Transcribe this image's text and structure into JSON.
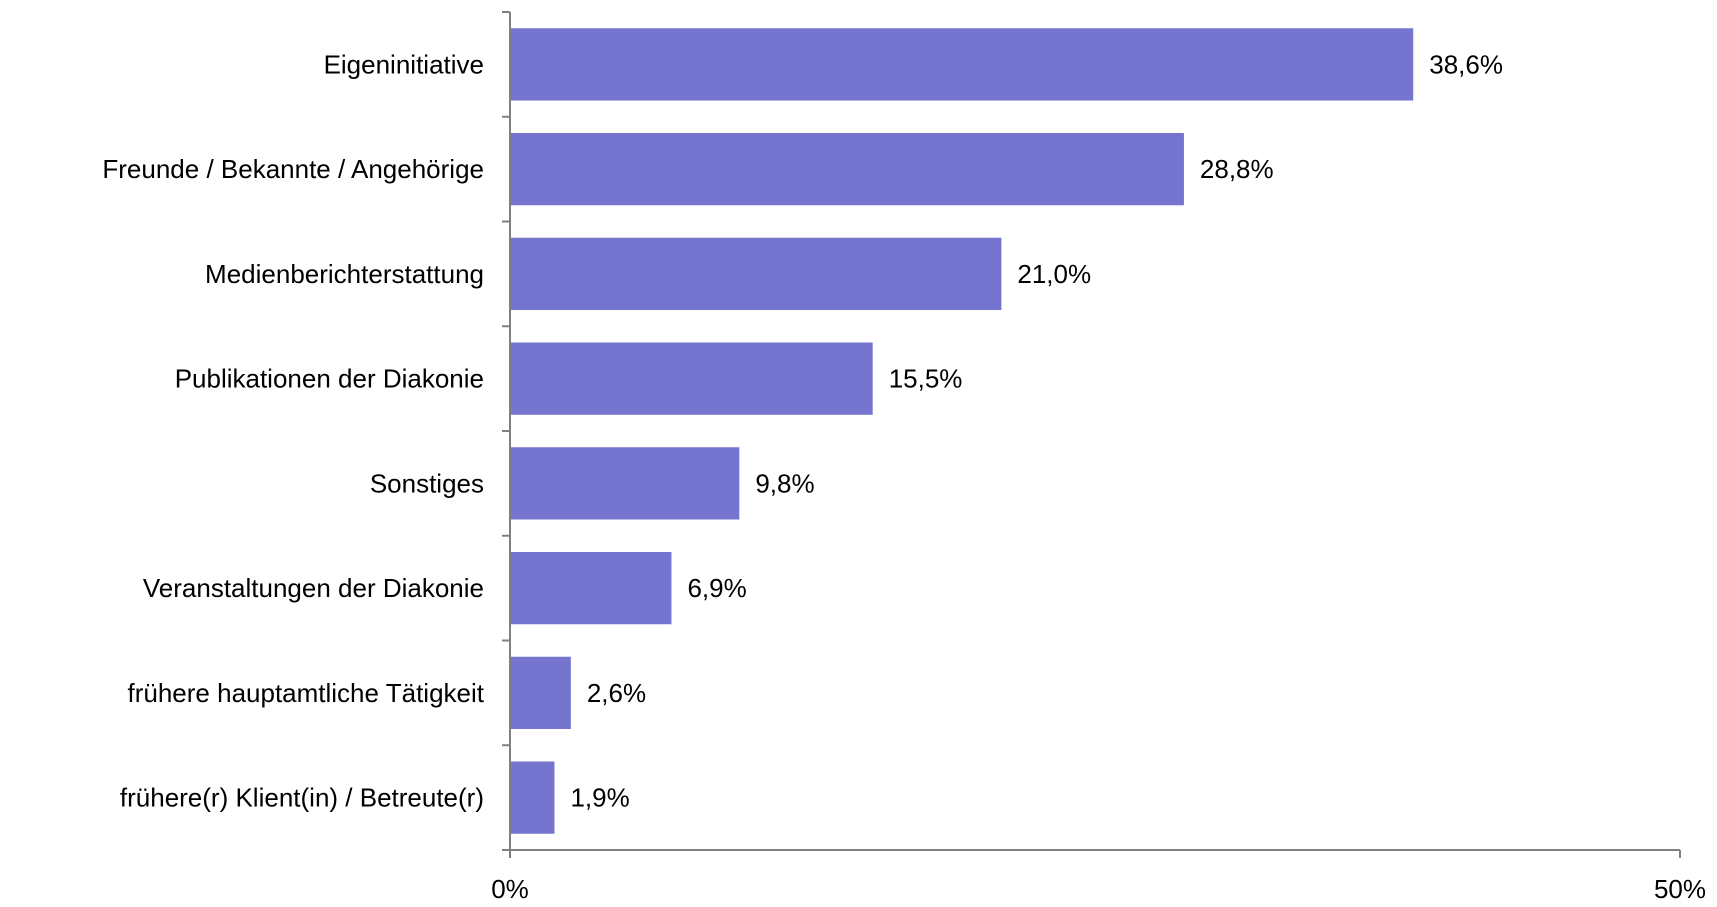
{
  "chart_data": {
    "type": "bar",
    "orientation": "horizontal",
    "categories": [
      "Eigeninitiative",
      "Freunde / Bekannte / Angehörige",
      "Medienberichterstattung",
      "Publikationen der Diakonie",
      "Sonstiges",
      "Veranstaltungen der Diakonie",
      "frühere hauptamtliche Tätigkeit",
      "frühere(r) Klient(in) / Betreute(r)"
    ],
    "values": [
      38.6,
      28.8,
      21.0,
      15.5,
      9.8,
      6.9,
      2.6,
      1.9
    ],
    "value_labels": [
      "38,6%",
      "28,8%",
      "21,0%",
      "15,5%",
      "9,8%",
      "6,9%",
      "2,6%",
      "1,9%"
    ],
    "xlim": [
      0,
      50
    ],
    "x_tick_labels": [
      "0%",
      "50%"
    ],
    "title": "",
    "xlabel": "",
    "ylabel": "",
    "grid": false,
    "legend": "none",
    "bar_color": "#7575cf"
  }
}
